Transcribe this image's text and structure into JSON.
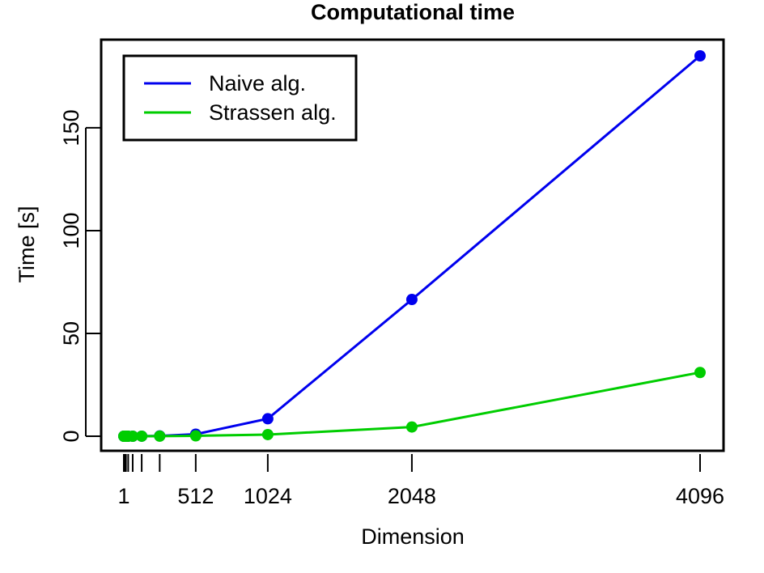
{
  "chart_data": {
    "type": "line",
    "title": "Computational time",
    "xlabel": "Dimension",
    "ylabel": "Time [s]",
    "xlim": [
      1,
      4096
    ],
    "ylim": [
      0,
      185
    ],
    "x_ticks": [
      1,
      512,
      1024,
      2048,
      4096
    ],
    "x_minor_ticks": [
      1,
      2,
      4,
      8,
      16,
      32,
      64,
      128,
      256,
      512,
      1024,
      2048,
      4096
    ],
    "y_ticks": [
      0,
      50,
      100,
      150
    ],
    "grid": false,
    "legend_position": "top-left",
    "x": [
      1,
      2,
      4,
      8,
      16,
      32,
      64,
      128,
      256,
      512,
      1024,
      2048,
      4096
    ],
    "series": [
      {
        "name": "Naive alg.",
        "color": "#0000EE",
        "values": [
          0,
          0,
          0,
          0,
          0,
          0,
          0,
          0.02,
          0.15,
          1.0,
          8.5,
          66.5,
          185
        ]
      },
      {
        "name": "Strassen alg.",
        "color": "#00CD00",
        "values": [
          0,
          0,
          0,
          0,
          0,
          0,
          0,
          0.01,
          0.05,
          0.2,
          0.8,
          4.5,
          31
        ]
      }
    ]
  }
}
